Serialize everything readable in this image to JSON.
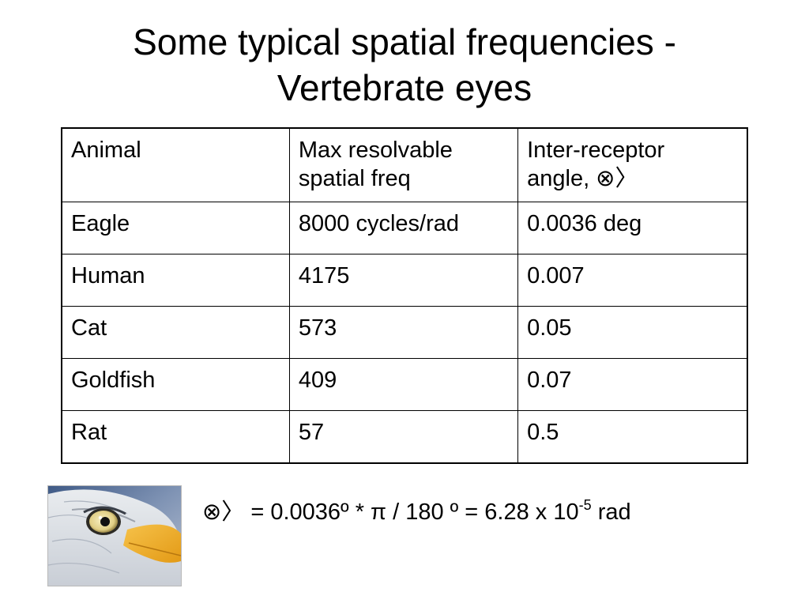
{
  "slide": {
    "title_line1": "Some typical spatial frequencies -",
    "title_line2": "Vertebrate eyes"
  },
  "table": {
    "header": {
      "col0": "Animal",
      "col1_line1": "Max resolvable",
      "col1_line2": "spatial freq",
      "col2_line1": "Inter-receptor",
      "col2_line2": "angle, ⊗〉"
    },
    "rows": [
      {
        "animal": "Eagle",
        "freq": "8000 cycles/rad",
        "angle": "0.0036 deg"
      },
      {
        "animal": "Human",
        "freq": "4175",
        "angle": "0.007"
      },
      {
        "animal": "Cat",
        "freq": "573",
        "angle": "0.05"
      },
      {
        "animal": "Goldfish",
        "freq": "409",
        "angle": "0.07"
      },
      {
        "animal": "Rat",
        "freq": "57",
        "angle": "0.5"
      }
    ]
  },
  "formula": {
    "main": "⊗〉 = 0.0036º   *  π  / 180 º = 6.28 x 10",
    "exponent": "-5",
    "unit": " rad"
  },
  "image": {
    "subject": "eagle-eye-photo"
  },
  "colors": {
    "text": "#000000",
    "background": "#ffffff",
    "table_border": "#000000"
  }
}
